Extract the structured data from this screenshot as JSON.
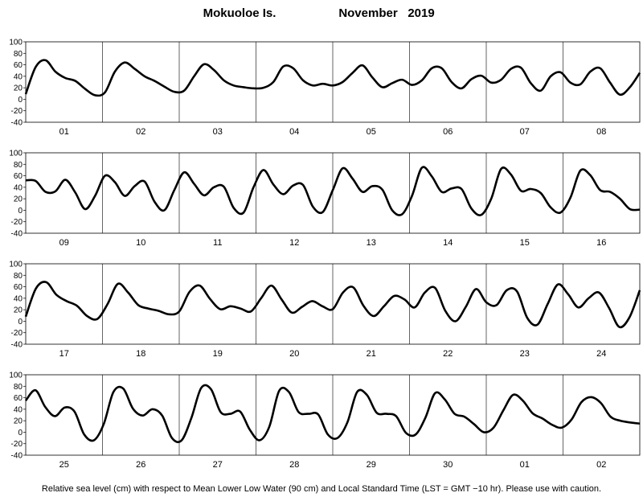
{
  "title": {
    "station": "Mokuoloe Is.",
    "month": "November",
    "year": "2019"
  },
  "footer": "Relative sea level (cm) with respect to Mean Lower Low Water (90 cm) and Local Standard Time (LST = GMT −10 hr). Please use with caution.",
  "chart_data": {
    "type": "line",
    "units": "cm",
    "ylim": [
      -40,
      100
    ],
    "yticks": [
      100,
      80,
      60,
      40,
      20,
      0,
      -20,
      -40
    ],
    "grid": "day separators only",
    "panels": [
      {
        "days": [
          "01",
          "02",
          "03",
          "04",
          "05",
          "06",
          "07",
          "08"
        ],
        "series": [
          {
            "y": [
              9,
              56,
              68,
              48,
              37,
              32,
              18,
              7,
              12,
              48,
              64,
              53,
              40,
              32,
              22,
              13,
              15,
              40,
              61,
              51,
              33,
              24,
              21,
              19,
              20,
              30,
              57,
              54,
              33,
              24,
              27,
              24,
              30,
              46,
              59,
              38,
              21,
              28,
              34,
              25,
              33,
              54,
              54,
              30,
              19,
              35,
              41,
              29,
              34,
              53,
              55,
              28,
              15,
              40,
              47,
              29,
              26,
              48,
              54,
              29,
              8,
              21,
              46
            ]
          }
        ]
      },
      {
        "days": [
          "09",
          "10",
          "11",
          "12",
          "13",
          "14",
          "15",
          "16"
        ],
        "series": [
          {
            "y": [
              52,
              51,
              32,
              33,
              53,
              31,
              2,
              25,
              60,
              49,
              25,
              42,
              50,
              15,
              0,
              35,
              66,
              46,
              26,
              40,
              41,
              4,
              -4,
              40,
              70,
              45,
              28,
              43,
              44,
              6,
              -3,
              35,
              73,
              55,
              32,
              42,
              36,
              0,
              -7,
              25,
              74,
              59,
              32,
              38,
              37,
              3,
              -8,
              20,
              72,
              62,
              34,
              37,
              30,
              5,
              -4,
              22,
              69,
              61,
              35,
              32,
              20,
              2,
              1
            ]
          }
        ]
      },
      {
        "days": [
          "17",
          "18",
          "19",
          "20",
          "21",
          "22",
          "23",
          "24"
        ],
        "series": [
          {
            "y": [
              8,
              57,
              68,
              46,
              35,
              27,
              9,
              4,
              30,
              65,
              50,
              28,
              22,
              18,
              12,
              17,
              51,
              62,
              39,
              21,
              26,
              22,
              17,
              40,
              62,
              38,
              15,
              25,
              35,
              26,
              21,
              50,
              59,
              27,
              9,
              26,
              44,
              38,
              24,
              50,
              58,
              18,
              0,
              25,
              56,
              33,
              28,
              54,
              52,
              6,
              -6,
              30,
              64,
              47,
              24,
              40,
              50,
              23,
              -10,
              7,
              54
            ]
          }
        ]
      },
      {
        "days": [
          "25",
          "26",
          "27",
          "28",
          "29",
          "30",
          "01",
          "02"
        ],
        "series": [
          {
            "y": [
              55,
              73,
              44,
              28,
              43,
              36,
              -4,
              -14,
              14,
              70,
              76,
              41,
              29,
              40,
              29,
              -10,
              -14,
              25,
              77,
              75,
              35,
              32,
              36,
              4,
              -14,
              10,
              72,
              70,
              35,
              32,
              31,
              -4,
              -10,
              17,
              70,
              65,
              34,
              32,
              28,
              -1,
              -4,
              25,
              68,
              57,
              32,
              27,
              14,
              0,
              8,
              38,
              65,
              55,
              33,
              24,
              13,
              8,
              22,
              52,
              61,
              51,
              27,
              20,
              17,
              15
            ]
          }
        ]
      }
    ]
  }
}
